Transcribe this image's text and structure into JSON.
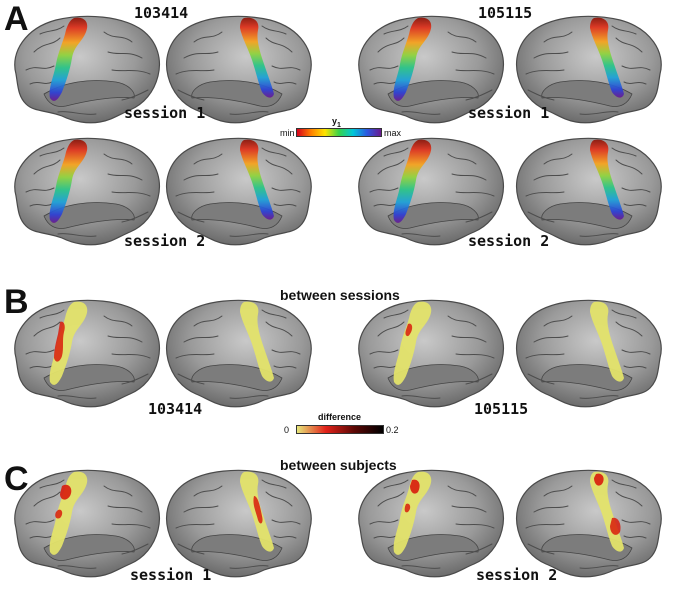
{
  "panels": {
    "a": {
      "letter": "A",
      "subject_left": "103414",
      "subject_right": "105115",
      "session1_label": "session 1",
      "session2_label": "session 2",
      "colorbar": {
        "title_main": "y",
        "title_sub": "1",
        "min_label": "min",
        "max_label": "max"
      }
    },
    "b": {
      "letter": "B",
      "title": "between sessions",
      "subject_left": "103414",
      "subject_right": "105115",
      "colorbar": {
        "title": "difference",
        "min_label": "0",
        "max_label": "0.2"
      }
    },
    "c": {
      "letter": "C",
      "title": "between subjects",
      "session1_label": "session 1",
      "session2_label": "session 2"
    }
  },
  "colors": {
    "cortex": "#8c8c8c",
    "gradient_rainbow": [
      "#d6001c",
      "#ff7f00",
      "#ffe400",
      "#37d34a",
      "#00c7d9",
      "#2b58e0",
      "#6a1a8f"
    ],
    "gradient_difference": [
      "#e3e36a",
      "#d81c0c",
      "#6a0a06",
      "#000000"
    ]
  }
}
